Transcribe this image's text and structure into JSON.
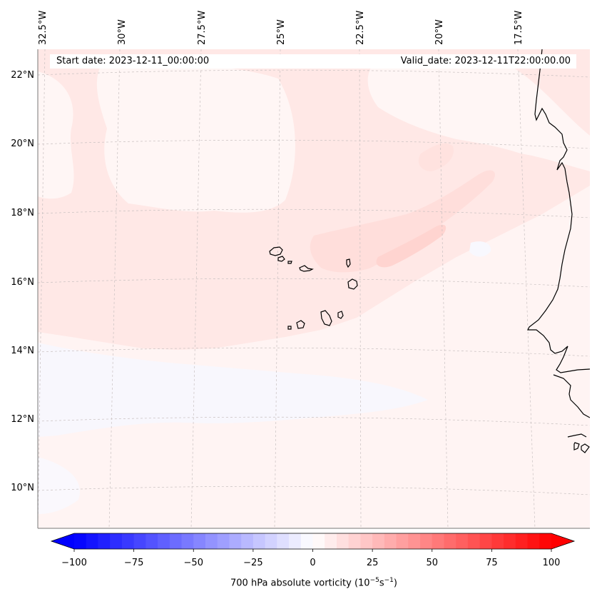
{
  "map": {
    "title_left": "Start date: 2023-12-11_00:00:00",
    "title_right": "Valid_date: 2023-12-11T22:00:00.00",
    "lon_labels": [
      "32.5°W",
      "30°W",
      "27.5°W",
      "25°W",
      "22.5°W",
      "20°W",
      "17.5°W"
    ],
    "lat_labels": [
      "22°N",
      "20°N",
      "18°N",
      "16°N",
      "14°N",
      "12°N",
      "10°N"
    ],
    "field": "700 hPa absolute vorticity",
    "land_features": [
      "Cabo Verde islands",
      "West African coastline"
    ]
  },
  "colorbar": {
    "label_main": "700 hPa absolute vorticity (10",
    "label_exp1": "−5",
    "label_mid": "s",
    "label_exp2": "−1",
    "label_end": ")",
    "ticks": [
      "−100",
      "−75",
      "−50",
      "−25",
      "0",
      "25",
      "50",
      "75",
      "100"
    ],
    "tick_values": [
      -100,
      -75,
      -50,
      -25,
      0,
      25,
      50,
      75,
      100
    ],
    "range": [
      -100,
      100
    ],
    "step": 5,
    "colormap": "bwr",
    "color_low": "#0000ff",
    "color_mid": "#ffffff",
    "color_high": "#ff0000"
  },
  "colors": {
    "background_field": "#fff4f3",
    "positive_light": "#ffe6e4",
    "positive_mid": "#ffd8d5",
    "negative_light": "#f6f7ff",
    "gridline": "#b8b0b0",
    "coast": "#000000"
  }
}
